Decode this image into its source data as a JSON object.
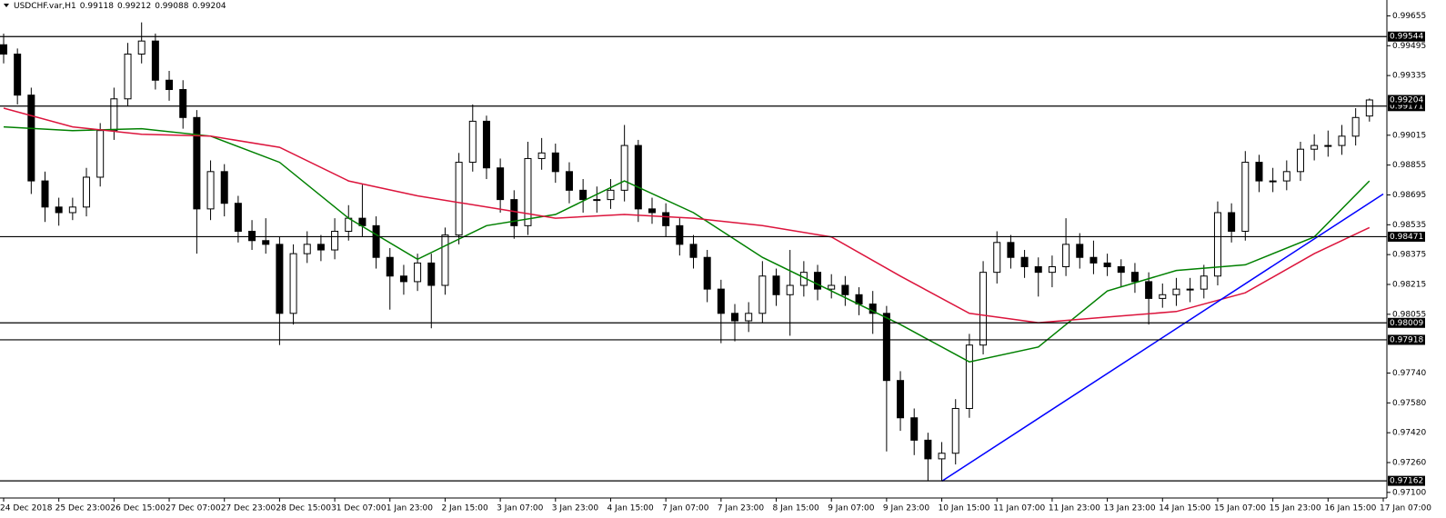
{
  "chart_data": {
    "type": "candlestick",
    "symbol": "USDCHF.var,H1",
    "header_ohlc": [
      0.99118,
      0.99212,
      0.99088,
      0.99204
    ],
    "categories": [
      "24 Dec 2018",
      "25 Dec 23:00",
      "26 Dec 15:00",
      "27 Dec 07:00",
      "27 Dec 23:00",
      "28 Dec 15:00",
      "31 Dec 07:00",
      "1 Jan 23:00",
      "2 Jan 15:00",
      "3 Jan 07:00",
      "3 Jan 23:00",
      "4 Jan 15:00",
      "7 Jan 07:00",
      "7 Jan 23:00",
      "8 Jan 15:00",
      "9 Jan 07:00",
      "9 Jan 23:00",
      "10 Jan 15:00",
      "11 Jan 07:00",
      "11 Jan 23:00",
      "13 Jan 23:00",
      "14 Jan 15:00",
      "15 Jan 07:00",
      "15 Jan 23:00",
      "16 Jan 15:00",
      "17 Jan 07:00"
    ],
    "open": [
      0.995,
      0.9945,
      0.9923,
      0.9877,
      0.9863,
      0.986,
      0.9863,
      0.9879,
      0.9904,
      0.9921,
      0.9945,
      0.9952,
      0.9931,
      0.9926,
      0.9911,
      0.9862,
      0.9882,
      0.9865,
      0.985,
      0.9845,
      0.9843,
      0.9806,
      0.9838,
      0.9843,
      0.984,
      0.985,
      0.9857,
      0.9853,
      0.9836,
      0.9826,
      0.9823,
      0.9833,
      0.9821,
      0.9848,
      0.9887,
      0.9909,
      0.9884,
      0.9867,
      0.9853,
      0.9889,
      0.9892,
      0.9882,
      0.9872,
      0.9867,
      0.9867,
      0.9872,
      0.9896,
      0.9862,
      0.986,
      0.9853,
      0.9843,
      0.9836,
      0.9819,
      0.9806,
      0.9802,
      0.9806,
      0.9826,
      0.9816,
      0.9821,
      0.9828,
      0.9819,
      0.9821,
      0.9816,
      0.9811,
      0.9806,
      0.977,
      0.975,
      0.9738,
      0.9728,
      0.9731,
      0.9755,
      0.9789,
      0.9828,
      0.9844,
      0.9836,
      0.9831,
      0.9828,
      0.9831,
      0.9843,
      0.9836,
      0.9833,
      0.9831,
      0.9828,
      0.9823,
      0.9814,
      0.9816,
      0.9819,
      0.9819,
      0.9826,
      0.986,
      0.985,
      0.9887,
      0.9877,
      0.9877,
      0.9882,
      0.9894,
      0.9896,
      0.9896,
      0.9901,
      0.99118
    ],
    "high": [
      0.9956,
      0.9948,
      0.9927,
      0.9882,
      0.9868,
      0.9868,
      0.9884,
      0.9908,
      0.9927,
      0.9951,
      0.9962,
      0.9956,
      0.9936,
      0.9931,
      0.9915,
      0.9888,
      0.9886,
      0.9869,
      0.9856,
      0.9857,
      0.9847,
      0.9843,
      0.985,
      0.9848,
      0.9857,
      0.9864,
      0.9875,
      0.9858,
      0.9841,
      0.9832,
      0.9838,
      0.9838,
      0.9852,
      0.9892,
      0.9918,
      0.9912,
      0.9889,
      0.9872,
      0.9898,
      0.99,
      0.9897,
      0.9887,
      0.9878,
      0.9874,
      0.9878,
      0.9907,
      0.9899,
      0.9868,
      0.9865,
      0.9857,
      0.9848,
      0.984,
      0.9824,
      0.9811,
      0.9812,
      0.9834,
      0.983,
      0.984,
      0.9834,
      0.9832,
      0.9827,
      0.9826,
      0.982,
      0.9818,
      0.981,
      0.9775,
      0.9755,
      0.9742,
      0.9737,
      0.976,
      0.9795,
      0.9834,
      0.985,
      0.9848,
      0.984,
      0.9836,
      0.9837,
      0.9857,
      0.9849,
      0.9845,
      0.9838,
      0.9835,
      0.9833,
      0.9828,
      0.9822,
      0.9825,
      0.9825,
      0.9832,
      0.9866,
      0.9865,
      0.9893,
      0.9891,
      0.9884,
      0.9888,
      0.9898,
      0.9902,
      0.9904,
      0.9907,
      0.9916,
      0.99212
    ],
    "low": [
      0.994,
      0.9918,
      0.987,
      0.9855,
      0.9853,
      0.9856,
      0.9858,
      0.9874,
      0.9899,
      0.9917,
      0.994,
      0.9926,
      0.992,
      0.9905,
      0.9838,
      0.9856,
      0.9858,
      0.9844,
      0.984,
      0.9838,
      0.9789,
      0.98,
      0.9833,
      0.9834,
      0.9835,
      0.9845,
      0.9847,
      0.983,
      0.9808,
      0.9816,
      0.9818,
      0.9798,
      0.9816,
      0.9843,
      0.9882,
      0.9878,
      0.986,
      0.9846,
      0.9848,
      0.9883,
      0.9876,
      0.9865,
      0.986,
      0.986,
      0.9862,
      0.9866,
      0.9855,
      0.9854,
      0.9847,
      0.9837,
      0.983,
      0.9812,
      0.979,
      0.9791,
      0.9796,
      0.9801,
      0.981,
      0.9794,
      0.9815,
      0.9813,
      0.9814,
      0.981,
      0.9805,
      0.9795,
      0.9732,
      0.9743,
      0.973,
      0.9716,
      0.9716,
      0.9725,
      0.975,
      0.9784,
      0.9822,
      0.983,
      0.9825,
      0.9815,
      0.982,
      0.9826,
      0.983,
      0.9827,
      0.9826,
      0.982,
      0.9817,
      0.98,
      0.9809,
      0.981,
      0.9812,
      0.9814,
      0.9821,
      0.9844,
      0.9845,
      0.9871,
      0.9871,
      0.9872,
      0.9877,
      0.9888,
      0.989,
      0.9891,
      0.9896,
      0.99088
    ],
    "close": [
      0.9945,
      0.9923,
      0.9877,
      0.9863,
      0.986,
      0.9863,
      0.9879,
      0.9904,
      0.9921,
      0.9945,
      0.9952,
      0.9931,
      0.9926,
      0.9911,
      0.9862,
      0.9882,
      0.9865,
      0.985,
      0.9845,
      0.9843,
      0.9806,
      0.9838,
      0.9843,
      0.984,
      0.985,
      0.9857,
      0.9853,
      0.9836,
      0.9826,
      0.9823,
      0.9833,
      0.9821,
      0.9848,
      0.9887,
      0.9909,
      0.9884,
      0.9867,
      0.9853,
      0.9889,
      0.9892,
      0.9882,
      0.9872,
      0.9867,
      0.9867,
      0.9872,
      0.9896,
      0.9862,
      0.986,
      0.9853,
      0.9843,
      0.9836,
      0.9819,
      0.9806,
      0.9802,
      0.9806,
      0.9826,
      0.9816,
      0.9821,
      0.9828,
      0.9819,
      0.9821,
      0.9816,
      0.9811,
      0.9806,
      0.977,
      0.975,
      0.9738,
      0.9728,
      0.9731,
      0.9755,
      0.9789,
      0.9828,
      0.9844,
      0.9836,
      0.9831,
      0.9828,
      0.9831,
      0.9843,
      0.9836,
      0.9833,
      0.9831,
      0.9828,
      0.9823,
      0.9814,
      0.9816,
      0.9819,
      0.9819,
      0.9826,
      0.986,
      0.985,
      0.9887,
      0.9877,
      0.9877,
      0.9882,
      0.9894,
      0.9896,
      0.9896,
      0.9901,
      0.9911,
      0.99204
    ],
    "lines": [
      {
        "color": "#008000",
        "x": [
          0,
          5,
          10,
          15,
          20,
          25,
          30,
          35,
          40,
          45,
          50,
          55,
          60,
          65,
          70,
          75,
          80,
          85,
          90,
          95,
          99
        ],
        "values": [
          0.9906,
          0.9904,
          0.9905,
          0.9901,
          0.9887,
          0.9857,
          0.9835,
          0.9853,
          0.9859,
          0.9877,
          0.986,
          0.9836,
          0.9818,
          0.98,
          0.978,
          0.9788,
          0.9818,
          0.9829,
          0.9832,
          0.9847,
          0.9877
        ]
      },
      {
        "color": "#dc143c",
        "x": [
          0,
          5,
          10,
          15,
          20,
          25,
          30,
          35,
          40,
          45,
          50,
          55,
          60,
          65,
          70,
          75,
          80,
          85,
          90,
          95,
          99
        ],
        "values": [
          0.9916,
          0.9906,
          0.9902,
          0.9901,
          0.9895,
          0.9877,
          0.9869,
          0.9863,
          0.9857,
          0.9859,
          0.9857,
          0.9853,
          0.9847,
          0.9826,
          0.9806,
          0.9801,
          0.9804,
          0.9807,
          0.9817,
          0.9838,
          0.9852
        ]
      },
      {
        "color": "#0000ff",
        "x": [
          68,
          100
        ],
        "values": [
          0.9716,
          0.987
        ]
      }
    ],
    "levels": [
      0.99544,
      0.99171,
      0.98471,
      0.98009,
      0.97918,
      0.97162
    ],
    "current_price": 0.99204,
    "ylim": [
      0.9707,
      0.9974
    ],
    "yticks": [
      0.99655,
      0.99495,
      0.99335,
      0.99015,
      0.98855,
      0.98695,
      0.98535,
      0.98375,
      0.98215,
      0.98055,
      {
        "value": 0.9774,
        "label": "0.97740"
      },
      {
        "value": 0.9758,
        "label": "0.97580"
      },
      {
        "value": 0.9742,
        "label": "0.97420"
      },
      {
        "value": 0.9726,
        "label": "0.97260"
      },
      {
        "value": 0.971,
        "label": "0.97100"
      }
    ],
    "grid": false
  }
}
